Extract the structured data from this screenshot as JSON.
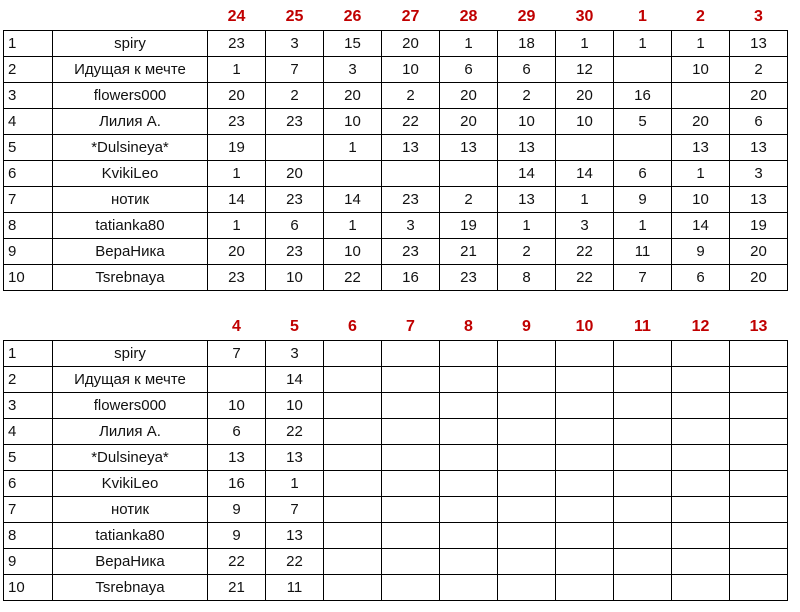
{
  "table1": {
    "days": [
      "24",
      "25",
      "26",
      "27",
      "28",
      "29",
      "30",
      "1",
      "2",
      "3"
    ],
    "rows": [
      {
        "num": "1",
        "name": "spiry",
        "cells": [
          [
            "23",
            "y"
          ],
          [
            "3",
            "r"
          ],
          [
            "15",
            "g"
          ],
          [
            "20",
            "y"
          ],
          [
            "1",
            "o"
          ],
          [
            "18",
            "r"
          ],
          [
            "1",
            "r"
          ],
          [
            "1",
            "o"
          ],
          [
            "1",
            "o"
          ],
          [
            "13",
            "g"
          ]
        ]
      },
      {
        "num": "2",
        "name": "Идущая к мечте",
        "cells": [
          [
            "1",
            "o"
          ],
          [
            "7",
            "y"
          ],
          [
            "3",
            "g"
          ],
          [
            "10",
            "r"
          ],
          [
            "6",
            "y"
          ],
          [
            "6",
            "g"
          ],
          [
            "12",
            "r"
          ],
          [
            "",
            "w"
          ],
          [
            "10",
            "p"
          ],
          [
            "2",
            "r"
          ]
        ]
      },
      {
        "num": "3",
        "name": "flowers000",
        "cells": [
          [
            "20",
            "r"
          ],
          [
            "2",
            "r"
          ],
          [
            "20",
            "r"
          ],
          [
            "2",
            "r"
          ],
          [
            "20",
            "r"
          ],
          [
            "2",
            "r"
          ],
          [
            "20",
            "r"
          ],
          [
            "16",
            "r"
          ],
          [
            "",
            "w"
          ],
          [
            "20",
            "r"
          ]
        ]
      },
      {
        "num": "4",
        "name": "Лилия А.",
        "cells": [
          [
            "23",
            "o"
          ],
          [
            "23",
            "o"
          ],
          [
            "10",
            "r"
          ],
          [
            "22",
            "r"
          ],
          [
            "20",
            "r"
          ],
          [
            "10",
            "r"
          ],
          [
            "10",
            "r"
          ],
          [
            "5",
            "r"
          ],
          [
            "20",
            "r"
          ],
          [
            "6",
            "r"
          ]
        ]
      },
      {
        "num": "5",
        "name": "*Dulsineya*",
        "cells": [
          [
            "19",
            "g"
          ],
          [
            "",
            "w"
          ],
          [
            "1",
            "g"
          ],
          [
            "13",
            "o"
          ],
          [
            "13",
            "o"
          ],
          [
            "13",
            "o"
          ],
          [
            "",
            "w"
          ],
          [
            "",
            "w"
          ],
          [
            "13",
            "o"
          ],
          [
            "13",
            "o"
          ]
        ]
      },
      {
        "num": "6",
        "name": "KvikiLeo",
        "cells": [
          [
            "1",
            "y"
          ],
          [
            "20",
            "r"
          ],
          [
            "",
            "w"
          ],
          [
            "",
            "w"
          ],
          [
            "",
            "w"
          ],
          [
            "14",
            "y"
          ],
          [
            "14",
            "r"
          ],
          [
            "6",
            "g"
          ],
          [
            "1",
            "r"
          ],
          [
            "3",
            "y"
          ]
        ]
      },
      {
        "num": "7",
        "name": "нотик",
        "cells": [
          [
            "14",
            "g"
          ],
          [
            "23",
            "r"
          ],
          [
            "14",
            "g"
          ],
          [
            "23",
            "r"
          ],
          [
            "2",
            "g"
          ],
          [
            "13",
            "r"
          ],
          [
            "1",
            "o"
          ],
          [
            "9",
            "p"
          ],
          [
            "10",
            "p"
          ],
          [
            "13",
            "r"
          ]
        ]
      },
      {
        "num": "8",
        "name": "tatianka80",
        "cells": [
          [
            "1",
            "o"
          ],
          [
            "6",
            "r"
          ],
          [
            "1",
            "o"
          ],
          [
            "3",
            "g"
          ],
          [
            "19",
            "g"
          ],
          [
            "1",
            "y"
          ],
          [
            "3",
            "g"
          ],
          [
            "1",
            "o"
          ],
          [
            "14",
            "r"
          ],
          [
            "19",
            "g"
          ]
        ]
      },
      {
        "num": "9",
        "name": "ВераНика",
        "cells": [
          [
            "20",
            "r"
          ],
          [
            "23",
            "r"
          ],
          [
            "10",
            "r"
          ],
          [
            "23",
            "r"
          ],
          [
            "21",
            "r"
          ],
          [
            "2",
            "r"
          ],
          [
            "22",
            "r"
          ],
          [
            "11",
            "r"
          ],
          [
            "9",
            "p"
          ],
          [
            "20",
            "r"
          ]
        ]
      },
      {
        "num": "10",
        "name": "Tsrebnaya",
        "cells": [
          [
            "23",
            "r"
          ],
          [
            "10",
            "r"
          ],
          [
            "22",
            "r"
          ],
          [
            "16",
            "r"
          ],
          [
            "23",
            "r"
          ],
          [
            "8",
            "r"
          ],
          [
            "22",
            "r"
          ],
          [
            "7",
            "y"
          ],
          [
            "6",
            "r"
          ],
          [
            "20",
            "r"
          ]
        ]
      }
    ]
  },
  "table2": {
    "days": [
      "4",
      "5",
      "6",
      "7",
      "8",
      "9",
      "10",
      "11",
      "12",
      "13"
    ],
    "rows": [
      {
        "num": "1",
        "name": "spiry",
        "cells": [
          [
            "7",
            "y"
          ],
          [
            "3",
            "pk"
          ]
        ]
      },
      {
        "num": "2",
        "name": "Идущая к мечте",
        "cells": [
          [
            "",
            "w"
          ],
          [
            "14",
            "lg"
          ]
        ]
      },
      {
        "num": "3",
        "name": "flowers000",
        "cells": [
          [
            "10",
            "p"
          ],
          [
            "10",
            "lp"
          ]
        ]
      },
      {
        "num": "4",
        "name": "Лилия А.",
        "cells": [
          [
            "6",
            "r"
          ],
          [
            "22",
            "pk"
          ]
        ]
      },
      {
        "num": "5",
        "name": "*Dulsineya*",
        "cells": [
          [
            "13",
            "o"
          ],
          [
            "13",
            "lo"
          ]
        ]
      },
      {
        "num": "6",
        "name": "KvikiLeo",
        "cells": [
          [
            "16",
            "y"
          ],
          [
            "1",
            "pk"
          ]
        ]
      },
      {
        "num": "7",
        "name": "нотик",
        "cells": [
          [
            "9",
            "p"
          ],
          [
            "7",
            "ly"
          ]
        ]
      },
      {
        "num": "8",
        "name": "tatianka80",
        "cells": [
          [
            "9",
            "g"
          ],
          [
            "13",
            "ly"
          ]
        ]
      },
      {
        "num": "9",
        "name": "ВераНика",
        "cells": [
          [
            "22",
            "r"
          ],
          [
            "22",
            "pk"
          ]
        ]
      },
      {
        "num": "10",
        "name": "Tsrebnaya",
        "cells": [
          [
            "21",
            "r"
          ],
          [
            "11",
            "pk"
          ]
        ]
      }
    ]
  },
  "colors": {
    "orange": "#ffc000",
    "yellow": "#ffff00",
    "green": "#2ed494",
    "red": "#ee0000",
    "purple": "#9370ee",
    "pink": "#ffd6f0",
    "header_red": "#c00000"
  }
}
